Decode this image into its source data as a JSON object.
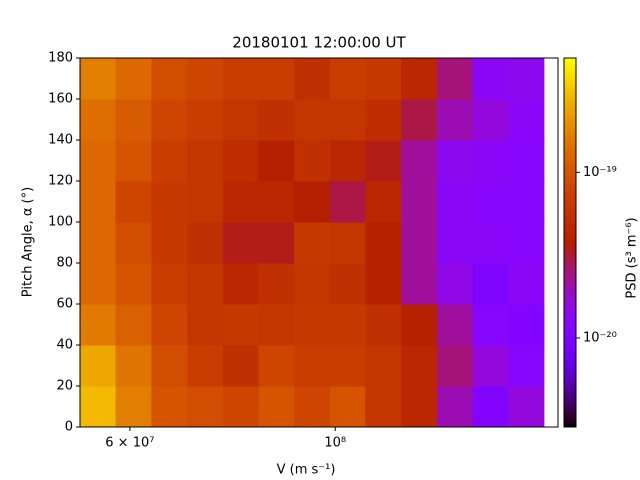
{
  "chart_data": {
    "type": "heatmap",
    "title": "20180101 12:00:00 UT",
    "xlabel": "V (m s⁻¹)",
    "ylabel": "Pitch Angle, α (°)",
    "colorbar_label": "PSD (s³ m⁻⁶)",
    "xscale": "log",
    "colorscale": "log",
    "colormap": "gnuplot",
    "xlim": [
      53000000,
      174000000
    ],
    "ylim": [
      0,
      180
    ],
    "xticks": [
      {
        "value": 60000000,
        "label": "6 × 10⁷"
      },
      {
        "value": 100000000,
        "label": "10⁸"
      }
    ],
    "yticks": [
      0,
      20,
      40,
      60,
      80,
      100,
      120,
      140,
      160,
      180
    ],
    "clim": [
      2.9e-21,
      4.9e-19
    ],
    "cticks": [
      {
        "value": 1e-20,
        "label": "10⁻²⁰"
      },
      {
        "value": 1e-19,
        "label": "10⁻¹⁹"
      }
    ],
    "xbins": [
      53000000,
      57900000,
      63300000,
      69200000,
      75600000,
      82600000,
      90300000,
      98700000,
      107800000,
      117800000,
      128800000,
      140700000,
      153800000,
      168000000
    ],
    "ybins": [
      0,
      20,
      40,
      60,
      80,
      100,
      120,
      140,
      160,
      180
    ],
    "z": [
      [
        2.9e-19,
        1.7e-19,
        1e-19,
        9e-20,
        8e-20,
        1e-19,
        8e-20,
        1e-19,
        6e-20,
        4.5e-20,
        2e-20,
        1.1e-20,
        1.6e-20
      ],
      [
        2.5e-19,
        1.5e-19,
        9e-20,
        7e-20,
        5.5e-20,
        8e-20,
        7e-20,
        7e-20,
        6e-20,
        4.5e-20,
        2.5e-20,
        1.6e-20,
        1.2e-20
      ],
      [
        1.6e-19,
        1.2e-19,
        8e-20,
        6e-20,
        6.5e-20,
        6e-20,
        6.5e-20,
        6.5e-20,
        5.5e-20,
        4e-20,
        2.2e-20,
        1.2e-20,
        1.1e-20
      ],
      [
        1.3e-19,
        1e-19,
        7e-20,
        6e-20,
        4.5e-20,
        5.5e-20,
        6e-20,
        5.5e-20,
        4e-20,
        2.2e-20,
        1.5e-20,
        1e-20,
        1.3e-20
      ],
      [
        1.3e-19,
        9e-20,
        6.5e-20,
        5.5e-20,
        3.5e-20,
        3.5e-20,
        6.5e-20,
        6e-20,
        4e-20,
        2.2e-20,
        1.3e-20,
        1.3e-20,
        1.2e-20
      ],
      [
        1.3e-19,
        8e-20,
        6.5e-20,
        6e-20,
        4.5e-20,
        4.5e-20,
        3.8e-20,
        3e-20,
        4.5e-20,
        2.2e-20,
        1.3e-20,
        1.2e-20,
        1.2e-20
      ],
      [
        1.3e-19,
        1e-19,
        7e-20,
        6e-20,
        5e-20,
        3.8e-20,
        5.5e-20,
        4.5e-20,
        3.5e-20,
        2.2e-20,
        1.4e-20,
        1.3e-20,
        1.2e-20
      ],
      [
        1.4e-19,
        1.1e-19,
        8e-20,
        7e-20,
        6e-20,
        5.5e-20,
        6e-20,
        6e-20,
        5e-20,
        3e-20,
        2e-20,
        1.6e-20,
        1.3e-20
      ],
      [
        1.7e-19,
        1.3e-19,
        9e-20,
        8e-20,
        7e-20,
        7e-20,
        5.5e-20,
        7e-20,
        6.5e-20,
        4.5e-20,
        2.5e-20,
        1.3e-20,
        1.4e-20
      ]
    ]
  }
}
